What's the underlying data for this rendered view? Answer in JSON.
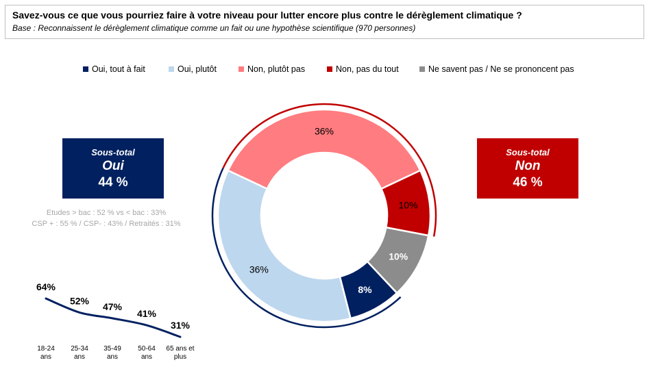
{
  "header": {
    "title": "Savez-vous ce que vous pourriez faire à votre niveau pour lutter encore plus contre le dérèglement climatique ?",
    "subtitle": "Base : Reconnaissent le dérèglement climatique comme un fait ou une hypothèse scientifique (970 personnes)"
  },
  "legend": [
    {
      "label": "Oui, tout à fait",
      "color": "#002060"
    },
    {
      "label": "Oui, plutôt",
      "color": "#bdd7ee"
    },
    {
      "label": "Non, plutôt pas",
      "color": "#ff7c80"
    },
    {
      "label": "Non, pas du tout",
      "color": "#c00000"
    },
    {
      "label": "Ne savent pas / Ne se prononcent pas",
      "color": "#8c8c8c"
    }
  ],
  "oui_box": {
    "line1": "Sous-total",
    "line2": "Oui",
    "line3": "44 %",
    "color": "#002060"
  },
  "non_box": {
    "line1": "Sous-total",
    "line2": "Non",
    "line3": "46 %",
    "color": "#c00000"
  },
  "notes": {
    "line1": "Etudes > bac : 52 % vs < bac : 33%",
    "line2": "CSP + : 55 % / CSP- : 43% / Retraités : 31%"
  },
  "chart_data": [
    {
      "type": "pie",
      "categories": [
        "Oui, tout à fait",
        "Oui, plutôt",
        "Non, plutôt pas",
        "Non, pas du tout",
        "Ne savent pas / Ne se prononcent pas"
      ],
      "values": [
        8,
        36,
        36,
        10,
        10
      ],
      "labels": [
        "8%",
        "36%",
        "36%",
        "10%",
        "10%"
      ],
      "colors": [
        "#002060",
        "#bdd7ee",
        "#ff7c80",
        "#c00000",
        "#8c8c8c"
      ],
      "label_colors": [
        "#ffffff",
        "#000000",
        "#000000",
        "#000000",
        "#ffffff"
      ],
      "style": "donut"
    },
    {
      "type": "line",
      "categories": [
        "18-24 ans",
        "25-34 ans",
        "35-49 ans",
        "50-64 ans",
        "65 ans et plus"
      ],
      "tick_lines": [
        [
          "18-24",
          "ans"
        ],
        [
          "25-34",
          "ans"
        ],
        [
          "35-49",
          "ans"
        ],
        [
          "50-64",
          "ans"
        ],
        [
          "65 ans et",
          "plus"
        ]
      ],
      "values": [
        64,
        52,
        47,
        41,
        31
      ],
      "labels": [
        "64%",
        "52%",
        "47%",
        "41%",
        "31%"
      ],
      "color": "#002060"
    }
  ]
}
